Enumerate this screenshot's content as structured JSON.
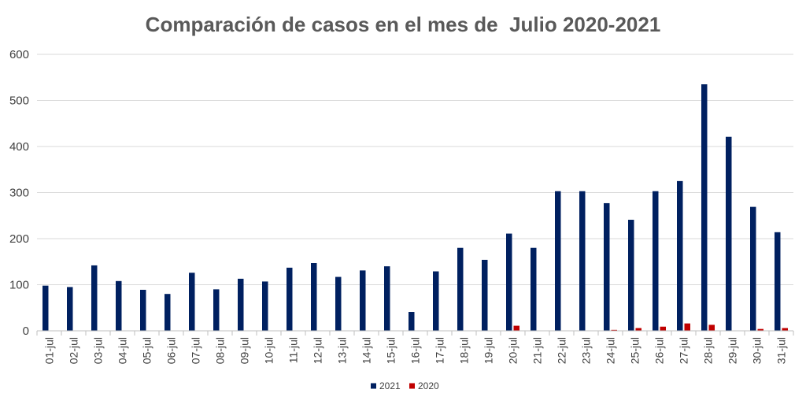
{
  "chart_data": {
    "type": "bar",
    "title": "Comparación de casos en el mes de  Julio 2020-2021",
    "categories": [
      "01-jul",
      "02-jul",
      "03-jul",
      "04-jul",
      "05-jul",
      "06-jul",
      "07-jul",
      "08-jul",
      "09-jul",
      "10-jul",
      "11-jul",
      "12-jul",
      "13-jul",
      "14-jul",
      "15-jul",
      "16-jul",
      "17-jul",
      "18-jul",
      "19-jul",
      "20-jul",
      "21-jul",
      "22-jul",
      "23-jul",
      "24-jul",
      "25-jul",
      "26-jul",
      "27-jul",
      "28-jul",
      "29-jul",
      "30-jul",
      "31-jul"
    ],
    "series": [
      {
        "name": "2021",
        "color": "#002060",
        "values": [
          98,
          95,
          142,
          108,
          89,
          80,
          126,
          90,
          113,
          107,
          137,
          147,
          117,
          131,
          140,
          41,
          129,
          180,
          154,
          211,
          180,
          303,
          303,
          277,
          241,
          303,
          325,
          535,
          421,
          269,
          214
        ]
      },
      {
        "name": "2020",
        "color": "#C00000",
        "values": [
          0,
          0,
          0,
          0,
          0,
          0,
          0,
          0,
          0,
          0,
          0,
          0,
          0,
          0,
          0,
          0,
          0,
          0,
          0,
          11,
          0,
          0,
          0,
          2,
          6,
          9,
          16,
          13,
          0,
          4,
          6
        ]
      }
    ],
    "ylim": [
      0,
      600
    ],
    "yticks": [
      0,
      100,
      200,
      300,
      400,
      500,
      600
    ],
    "grid": true,
    "legend": "bottom",
    "xlabel": "",
    "ylabel": ""
  }
}
